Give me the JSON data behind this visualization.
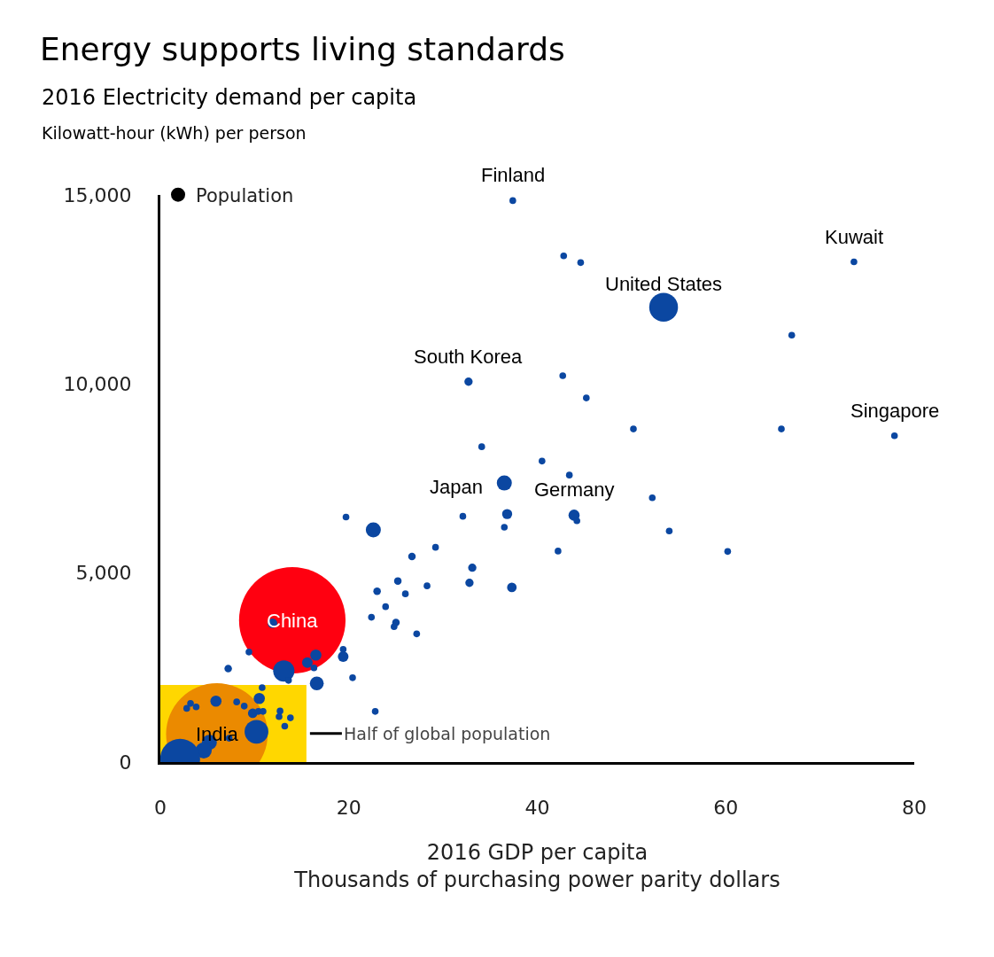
{
  "chart_data": {
    "type": "bubble",
    "title": "Energy supports living standards",
    "subtitle": "2016 Electricity demand per capita",
    "ylabel": "Kilowatt-hour (kWh) per person",
    "xlabel": "2016 GDP per capita\nThousands of purchasing power parity dollars",
    "xlim": [
      0,
      80
    ],
    "xticks": [
      0,
      20,
      40,
      60,
      80
    ],
    "ylim": [
      0,
      15000
    ],
    "yticks": [
      0,
      {
        "value": 5000,
        "label": "5,000"
      },
      {
        "value": 10000,
        "label": "10,000"
      },
      {
        "value": 15000,
        "label": "15,000"
      }
    ],
    "legend": "top left",
    "series": [
      {
        "type": "area",
        "color": "#ffd700",
        "x": [
          0,
          15.5
        ],
        "values": [
          2040,
          2040
        ]
      },
      {
        "name": "Population",
        "color": "#000000",
        "x": [
          14.0,
          6.0,
          19.7,
          22.6,
          29.2,
          26.7,
          25.2,
          28.3,
          23.0,
          26.0,
          23.9,
          22.4,
          25.0,
          24.8,
          27.2,
          11.9,
          9.4,
          16.5,
          19.4,
          19.4,
          15.6,
          16.3,
          7.2,
          13.1,
          13.6,
          16.6,
          20.4,
          22.8,
          10.8,
          10.5,
          5.9,
          8.1,
          8.9,
          3.2,
          2.8,
          3.8,
          9.8,
          10.4,
          10.9,
          12.7,
          12.6,
          13.8,
          13.2,
          10.2,
          7.3,
          5.2,
          4.6,
          2.1,
          32.7,
          42.7,
          45.2,
          50.2,
          34.1,
          40.5,
          43.4,
          36.5,
          52.2,
          32.1,
          36.8,
          43.9,
          44.2,
          36.5,
          54.0,
          60.2,
          42.2,
          33.1,
          32.8,
          37.3,
          37.4,
          42.8,
          44.6,
          53.4,
          73.6,
          67.0,
          77.9,
          65.9
        ],
        "values": [
          3750,
          740,
          6480,
          6140,
          5680,
          5440,
          4790,
          4660,
          4520,
          4450,
          4110,
          3830,
          3690,
          3580,
          3390,
          3670,
          2910,
          2830,
          2980,
          2790,
          2630,
          2490,
          2470,
          2410,
          2160,
          2080,
          2230,
          1340,
          1970,
          1680,
          1610,
          1590,
          1480,
          1550,
          1420,
          1460,
          1290,
          1340,
          1340,
          1350,
          1200,
          1170,
          950,
          800,
          630,
          520,
          310,
          90,
          10060,
          10220,
          9630,
          8810,
          8340,
          7960,
          7590,
          7380,
          6990,
          6500,
          6560,
          6530,
          6380,
          6210,
          6110,
          5570,
          5580,
          5140,
          4740,
          4620,
          14850,
          13390,
          13210,
          12030,
          13230,
          11290,
          8630,
          8810
        ],
        "sizes": [
          1,
          0.91,
          0.004,
          0.02,
          0.004,
          0.005,
          0.005,
          0.004,
          0.005,
          0.004,
          0.004,
          0.004,
          0.005,
          0.004,
          0.004,
          0.008,
          0.004,
          0.011,
          0.004,
          0.01,
          0.01,
          0.004,
          0.005,
          0.04,
          0.004,
          0.017,
          0.004,
          0.004,
          0.004,
          0.011,
          0.011,
          0.004,
          0.004,
          0.004,
          0.004,
          0.004,
          0.008,
          0.004,
          0.004,
          0.004,
          0.004,
          0.004,
          0.004,
          0.05,
          0.004,
          0.02,
          0.023,
          0.14,
          0.006,
          0.004,
          0.004,
          0.004,
          0.004,
          0.004,
          0.004,
          0.02,
          0.004,
          0.004,
          0.009,
          0.011,
          0.004,
          0.004,
          0.004,
          0.004,
          0.004,
          0.006,
          0.006,
          0.008,
          0.004,
          0.004,
          0.004,
          0.073,
          0.004,
          0.004,
          0.004,
          0.004
        ],
        "colors": [
          "#ff0010",
          "#eb8a00",
          "#0b47a1",
          "#0b47a1",
          "#0b47a1",
          "#0b47a1",
          "#0b47a1",
          "#0b47a1",
          "#0b47a1",
          "#0b47a1",
          "#0b47a1",
          "#0b47a1",
          "#0b47a1",
          "#0b47a1",
          "#0b47a1",
          "#0b47a1",
          "#0b47a1",
          "#0b47a1",
          "#0b47a1",
          "#0b47a1",
          "#0b47a1",
          "#0b47a1",
          "#0b47a1",
          "#0b47a1",
          "#0b47a1",
          "#0b47a1",
          "#0b47a1",
          "#0b47a1",
          "#0b47a1",
          "#0b47a1",
          "#0b47a1",
          "#0b47a1",
          "#0b47a1",
          "#0b47a1",
          "#0b47a1",
          "#0b47a1",
          "#0b47a1",
          "#0b47a1",
          "#0b47a1",
          "#0b47a1",
          "#0b47a1",
          "#0b47a1",
          "#0b47a1",
          "#0b47a1",
          "#0b47a1",
          "#0b47a1",
          "#0b47a1",
          "#0b47a1",
          "#0b47a1",
          "#0b47a1",
          "#0b47a1",
          "#0b47a1",
          "#0b47a1",
          "#0b47a1",
          "#0b47a1",
          "#0b47a1",
          "#0b47a1",
          "#0b47a1",
          "#0b47a1",
          "#0b47a1",
          "#0b47a1",
          "#0b47a1",
          "#0b47a1",
          "#0b47a1",
          "#0b47a1",
          "#0b47a1",
          "#0b47a1",
          "#0b47a1",
          "#0b47a1",
          "#0b47a1",
          "#0b47a1",
          "#0b47a1",
          "#0b47a1",
          "#0b47a1",
          "#0b47a1",
          "#0b47a1"
        ]
      }
    ],
    "annotations": [
      {
        "text": "Finland",
        "x": 37.4,
        "y": 14850
      },
      {
        "text": "Kuwait",
        "x": 73.6,
        "y": 13230
      },
      {
        "text": "United States",
        "x": 53.4,
        "y": 12030
      },
      {
        "text": "South Korea",
        "x": 32.7,
        "y": 10060
      },
      {
        "text": "Singapore",
        "x": 77.9,
        "y": 8630
      },
      {
        "text": "Japan",
        "x": 36.5,
        "y": 7380
      },
      {
        "text": "Germany",
        "x": 43.9,
        "y": 6530
      },
      {
        "text": "China",
        "x": 14.0,
        "y": 3750
      },
      {
        "text": "India",
        "x": 6.0,
        "y": 740
      },
      "Half of global population"
    ]
  }
}
